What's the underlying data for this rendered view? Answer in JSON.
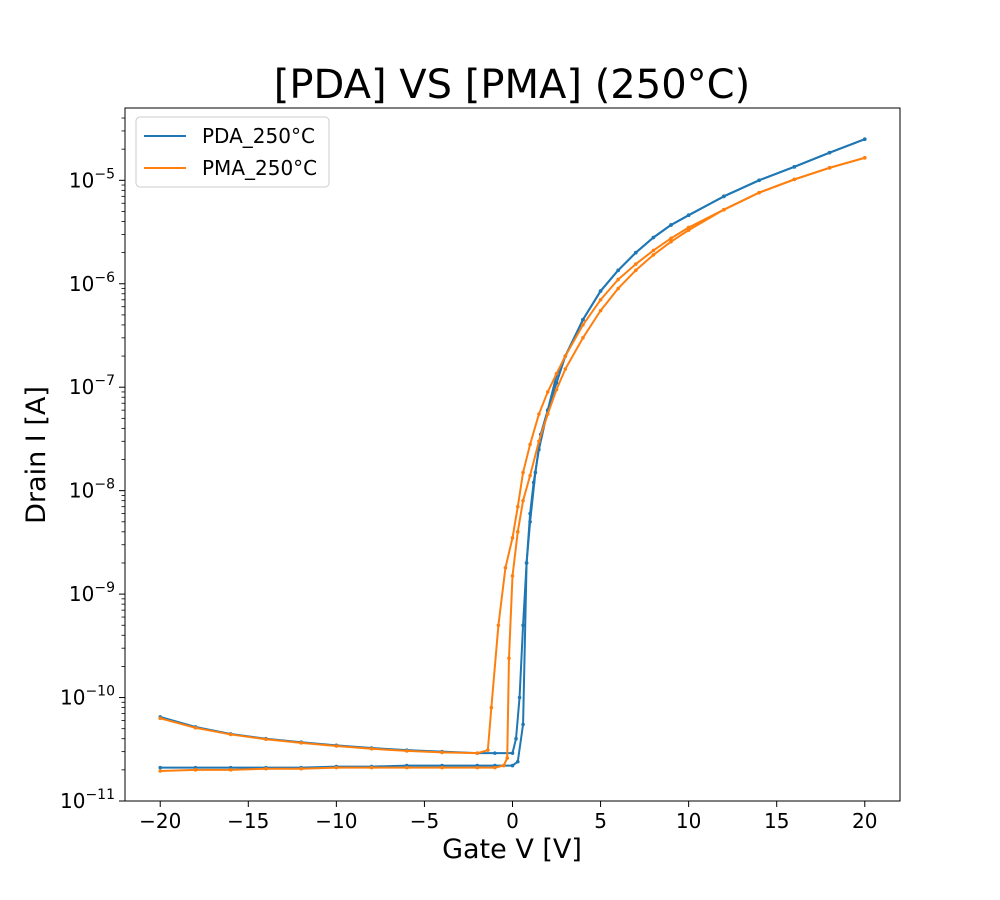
{
  "chart_data": {
    "type": "line",
    "title": "[PDA] VS [PMA] (250°C)",
    "xlabel": "Gate V [V]",
    "ylabel": "Drain I [A]",
    "xlim": [
      -22,
      22
    ],
    "ylim": [
      1e-11,
      5e-05
    ],
    "yscale": "log",
    "grid": false,
    "legend_position": "top-left",
    "x_ticks": [
      "−20",
      "−15",
      "−10",
      "−5",
      "0",
      "5",
      "10",
      "15",
      "20"
    ],
    "x_tick_values": [
      -20,
      -15,
      -10,
      -5,
      0,
      5,
      10,
      15,
      20
    ],
    "y_ticks": [
      {
        "value": 1e-11,
        "base": "10",
        "exp": "−11"
      },
      {
        "value": 1e-10,
        "base": "10",
        "exp": "−10"
      },
      {
        "value": 1e-09,
        "base": "10",
        "exp": "−9"
      },
      {
        "value": 1e-08,
        "base": "10",
        "exp": "−8"
      },
      {
        "value": 1e-07,
        "base": "10",
        "exp": "−7"
      },
      {
        "value": 1e-06,
        "base": "10",
        "exp": "−6"
      },
      {
        "value": 1e-05,
        "base": "10",
        "exp": "−5"
      }
    ],
    "series": [
      {
        "name": "PDA_250°C",
        "color": "#1f77b4",
        "forward": {
          "x": [
            -20,
            -18,
            -16,
            -14,
            -12,
            -10,
            -8,
            -6,
            -4,
            -2,
            -1,
            0,
            0.3,
            0.6,
            0.8,
            1.0,
            1.3,
            1.6,
            2,
            2.5,
            3,
            4,
            5,
            6,
            7,
            8,
            9,
            10,
            12,
            14,
            16,
            18,
            20
          ],
          "y": [
            2.1e-11,
            2.1e-11,
            2.1e-11,
            2.1e-11,
            2.1e-11,
            2.15e-11,
            2.15e-11,
            2.2e-11,
            2.2e-11,
            2.2e-11,
            2.2e-11,
            2.2e-11,
            2.4e-11,
            5.5e-11,
            2e-09,
            5e-09,
            1.5e-08,
            3.5e-08,
            6e-08,
            1.1e-07,
            2e-07,
            4.5e-07,
            8.5e-07,
            1.35e-06,
            2e-06,
            2.8e-06,
            3.7e-06,
            4.6e-06,
            7e-06,
            1e-05,
            1.35e-05,
            1.85e-05,
            2.5e-05
          ]
        },
        "reverse": {
          "x": [
            20,
            18,
            16,
            14,
            12,
            10,
            9,
            8,
            7,
            6,
            5,
            4,
            3,
            2.5,
            2,
            1.5,
            1.2,
            1.0,
            0.8,
            0.6,
            0.4,
            0.2,
            0,
            -1,
            -2,
            -4,
            -6,
            -8,
            -10,
            -12,
            -14,
            -16,
            -18,
            -20
          ],
          "y": [
            2.5e-05,
            1.85e-05,
            1.35e-05,
            1e-05,
            7e-06,
            4.6e-06,
            3.7e-06,
            2.8e-06,
            2e-06,
            1.35e-06,
            8.5e-07,
            4.5e-07,
            2e-07,
            1.3e-07,
            6e-08,
            2.5e-08,
            1.2e-08,
            6e-09,
            2e-09,
            5e-10,
            1e-10,
            4e-11,
            2.9e-11,
            2.9e-11,
            2.9e-11,
            3e-11,
            3.1e-11,
            3.25e-11,
            3.45e-11,
            3.7e-11,
            4e-11,
            4.45e-11,
            5.2e-11,
            6.5e-11
          ]
        }
      },
      {
        "name": "PMA_250°C",
        "color": "#ff7f0e",
        "forward": {
          "x": [
            -20,
            -18,
            -16,
            -14,
            -12,
            -10,
            -8,
            -6,
            -4,
            -2,
            -1,
            -0.5,
            -0.3,
            -0.2,
            0,
            0.3,
            0.6,
            1.0,
            1.5,
            2,
            2.5,
            3,
            4,
            5,
            6,
            7,
            8,
            9,
            10,
            12,
            14,
            16,
            18,
            20
          ],
          "y": [
            1.95e-11,
            2e-11,
            2e-11,
            2.05e-11,
            2.05e-11,
            2.1e-11,
            2.1e-11,
            2.1e-11,
            2.1e-11,
            2.1e-11,
            2.1e-11,
            2.2e-11,
            2.6e-11,
            2.4e-10,
            1.5e-09,
            4e-09,
            8e-09,
            1.4e-08,
            3e-08,
            5.5e-08,
            9.5e-08,
            1.5e-07,
            3e-07,
            5.5e-07,
            9e-07,
            1.35e-06,
            1.9e-06,
            2.55e-06,
            3.3e-06,
            5.2e-06,
            7.6e-06,
            1.02e-05,
            1.32e-05,
            1.65e-05
          ]
        },
        "reverse": {
          "x": [
            20,
            18,
            16,
            14,
            12,
            10,
            9,
            8,
            7,
            6,
            5,
            4,
            3,
            2.5,
            2,
            1.5,
            1.0,
            0.6,
            0.3,
            0,
            -0.4,
            -0.8,
            -1.2,
            -1.4,
            -2,
            -4,
            -6,
            -8,
            -10,
            -12,
            -14,
            -16,
            -18,
            -20
          ],
          "y": [
            1.65e-05,
            1.32e-05,
            1.02e-05,
            7.6e-06,
            5.2e-06,
            3.5e-06,
            2.75e-06,
            2.1e-06,
            1.55e-06,
            1.1e-06,
            7e-07,
            4e-07,
            2e-07,
            1.35e-07,
            9e-08,
            5.5e-08,
            2.8e-08,
            1.5e-08,
            7e-09,
            3.5e-09,
            1.8e-09,
            5e-10,
            8e-11,
            3.1e-11,
            2.9e-11,
            2.95e-11,
            3.05e-11,
            3.2e-11,
            3.4e-11,
            3.65e-11,
            3.95e-11,
            4.4e-11,
            5.1e-11,
            6.3e-11
          ]
        }
      }
    ]
  }
}
